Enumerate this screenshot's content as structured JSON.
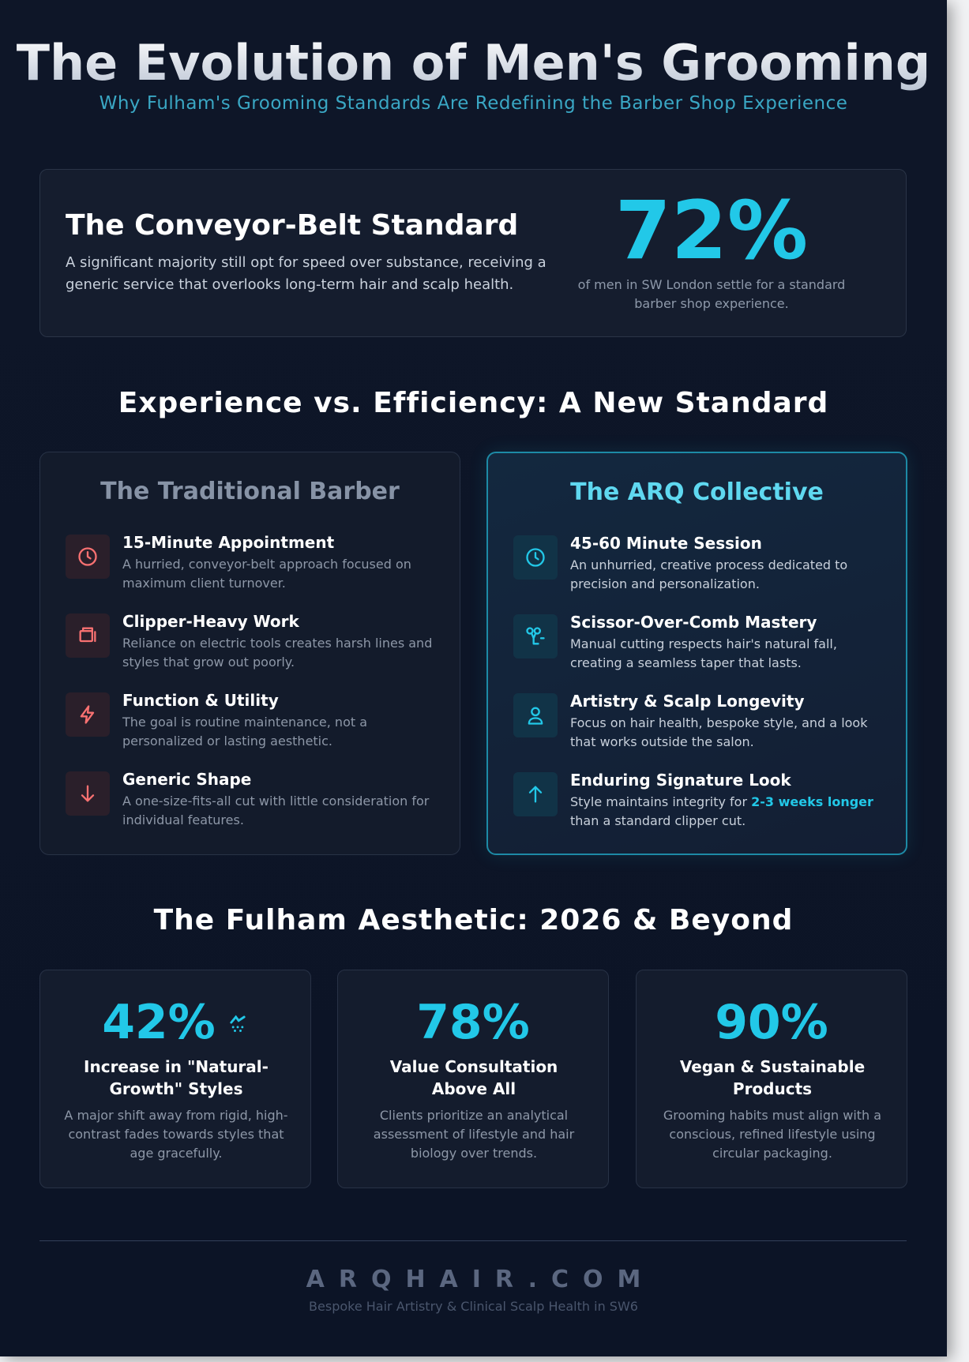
{
  "header": {
    "title": "The Evolution of Men's Grooming",
    "subtitle": "Why Fulham's Grooming Standards Are Redefining the Barber Shop Experience"
  },
  "hero": {
    "title": "The Conveyor-Belt Standard",
    "text": "A significant majority still opt for speed over substance, receiving a generic service that overlooks long-term hair and scalp health.",
    "stat": "72%",
    "stat_label": "of men in SW London settle for a standard barber shop experience."
  },
  "comparison": {
    "title": "Experience vs. Efficiency: A New Standard",
    "columns": [
      {
        "title": "The Traditional Barber",
        "items": [
          {
            "title": "15-Minute Appointment",
            "text": "A hurried, conveyor-belt approach focused on maximum client turnover."
          },
          {
            "title": "Clipper-Heavy Work",
            "text": "Reliance on electric tools creates harsh lines and styles that grow out poorly."
          },
          {
            "title": "Function & Utility",
            "text": "The goal is routine maintenance, not a personalized or lasting aesthetic."
          },
          {
            "title": "Generic Shape",
            "text": "A one-size-fits-all cut with little consideration for individual features."
          }
        ]
      },
      {
        "title": "The ARQ Collective",
        "items": [
          {
            "title": "45-60 Minute Session",
            "text": "An unhurried, creative process dedicated to precision and personalization."
          },
          {
            "title": "Scissor-Over-Comb Mastery",
            "text": "Manual cutting respects hair's natural fall, creating a seamless taper that lasts."
          },
          {
            "title": "Artistry & Scalp Longevity",
            "text": "Focus on hair health, bespoke style, and a look that works outside the salon."
          },
          {
            "title": "Enduring Signature Look",
            "text": "Style maintains integrity for",
            "highlight": "2-3 weeks longer",
            "text_after": "than a standard clipper cut."
          }
        ]
      }
    ]
  },
  "trends": {
    "title": "The Fulham Aesthetic: 2026 & Beyond",
    "stats": [
      {
        "stat": "42%",
        "title": "Increase in \"Natural-Growth\" Styles",
        "text": "A major shift away from rigid, high-contrast fades towards styles that age gracefully."
      },
      {
        "stat": "78%",
        "title": "Value Consultation Above All",
        "text": "Clients prioritize an analytical assessment of lifestyle and hair biology over trends."
      },
      {
        "stat": "90%",
        "title": "Vegan & Sustainable Products",
        "text": "Grooming habits must align with a conscious, refined lifestyle using circular packaging."
      }
    ]
  },
  "footer": {
    "brand": "ARQHAIR.COM",
    "tagline": "Bespoke Hair Artistry & Clinical Scalp Health in SW6"
  }
}
